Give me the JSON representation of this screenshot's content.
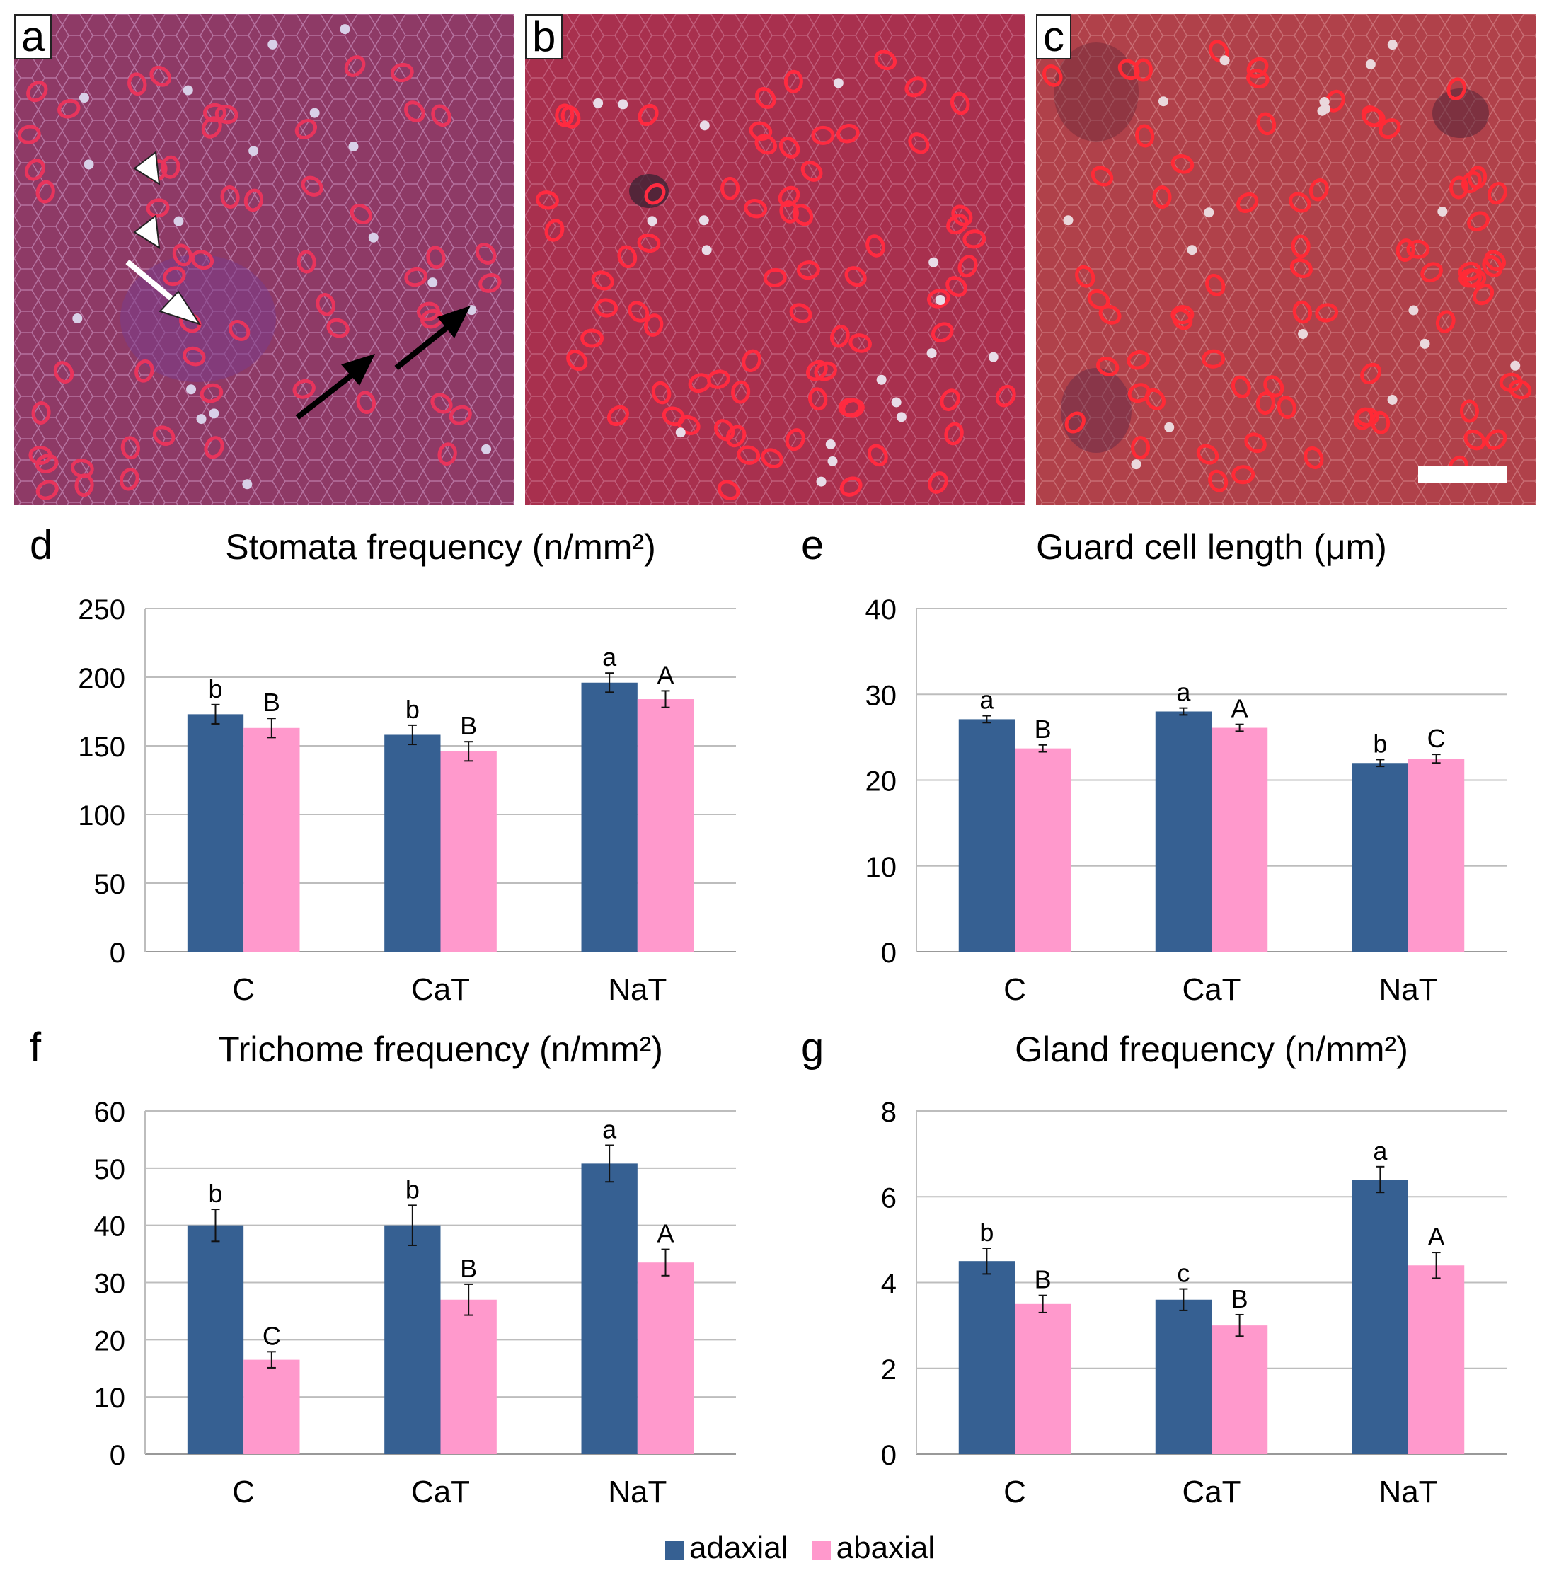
{
  "panel_labels": [
    "a",
    "b",
    "c"
  ],
  "colors": {
    "adaxial": "#366092",
    "abaxial": "#ff99cc"
  },
  "legend": [
    {
      "label": "adaxial",
      "color": "#366092"
    },
    {
      "label": "abaxial",
      "color": "#ff99cc"
    }
  ],
  "chart_data": [
    {
      "panel": "d",
      "type": "bar",
      "title": "Stomata frequency (n/mm²)",
      "categories": [
        "C",
        "CaT",
        "NaT"
      ],
      "ylim": [
        0,
        250
      ],
      "yticks": [
        0,
        50,
        100,
        150,
        200,
        250
      ],
      "grid": true,
      "series": [
        {
          "name": "adaxial",
          "values": [
            173,
            158,
            196
          ],
          "errors": [
            7,
            7,
            7
          ],
          "letters": [
            "b",
            "b",
            "a"
          ]
        },
        {
          "name": "abaxial",
          "values": [
            163,
            146,
            184
          ],
          "errors": [
            7,
            7,
            6
          ],
          "letters": [
            "B",
            "B",
            "A"
          ]
        }
      ]
    },
    {
      "panel": "e",
      "type": "bar",
      "title": "Guard cell length (μm)",
      "categories": [
        "C",
        "CaT",
        "NaT"
      ],
      "ylim": [
        0,
        40
      ],
      "yticks": [
        0,
        10,
        20,
        30,
        40
      ],
      "grid": true,
      "series": [
        {
          "name": "adaxial",
          "values": [
            27.1,
            28.0,
            22.0
          ],
          "errors": [
            0.4,
            0.4,
            0.4
          ],
          "letters": [
            "a",
            "a",
            "b"
          ]
        },
        {
          "name": "abaxial",
          "values": [
            23.7,
            26.1,
            22.5
          ],
          "errors": [
            0.4,
            0.4,
            0.5
          ],
          "letters": [
            "B",
            "A",
            "C"
          ]
        }
      ]
    },
    {
      "panel": "f",
      "type": "bar",
      "title": "Trichome frequency (n/mm²)",
      "categories": [
        "C",
        "CaT",
        "NaT"
      ],
      "ylim": [
        0,
        60
      ],
      "yticks": [
        0,
        10,
        20,
        30,
        40,
        50,
        60
      ],
      "grid": true,
      "series": [
        {
          "name": "adaxial",
          "values": [
            40,
            40,
            50.8
          ],
          "errors": [
            2.8,
            3.5,
            3.2
          ],
          "letters": [
            "b",
            "b",
            "a"
          ]
        },
        {
          "name": "abaxial",
          "values": [
            16.5,
            27,
            33.5
          ],
          "errors": [
            1.4,
            2.7,
            2.3
          ],
          "letters": [
            "C",
            "B",
            "A"
          ]
        }
      ]
    },
    {
      "panel": "g",
      "type": "bar",
      "title": "Gland frequency (n/mm²)",
      "categories": [
        "C",
        "CaT",
        "NaT"
      ],
      "ylim": [
        0,
        8
      ],
      "yticks": [
        0,
        2,
        4,
        6,
        8
      ],
      "grid": true,
      "series": [
        {
          "name": "adaxial",
          "values": [
            4.5,
            3.6,
            6.4
          ],
          "errors": [
            0.3,
            0.25,
            0.3
          ],
          "letters": [
            "b",
            "c",
            "a"
          ]
        },
        {
          "name": "abaxial",
          "values": [
            3.5,
            3.0,
            4.4
          ],
          "errors": [
            0.2,
            0.25,
            0.3
          ],
          "letters": [
            "B",
            "B",
            "A"
          ]
        }
      ]
    }
  ]
}
